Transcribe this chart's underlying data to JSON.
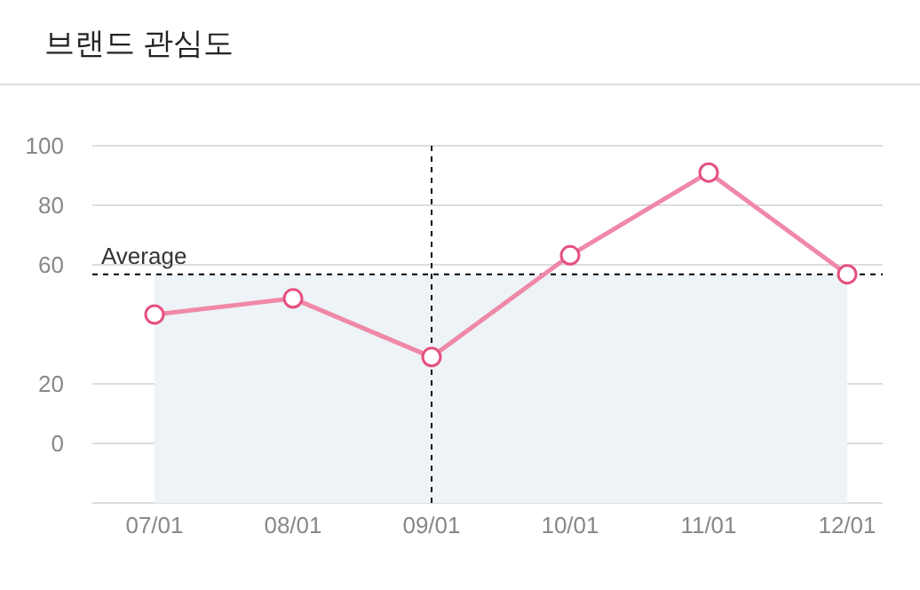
{
  "chart_data": {
    "type": "line",
    "title": "브랜드 관심도",
    "categories": [
      "07/01",
      "08/01",
      "09/01",
      "10/01",
      "11/01",
      "12/01"
    ],
    "series": [
      {
        "color": "#f088a8",
        "values": [
          43.3,
          48.7,
          29.0,
          63.2,
          91.0,
          56.8
        ]
      }
    ],
    "ylim": [
      -20,
      100
    ],
    "yticks": [
      {
        "value": -20,
        "label": null
      },
      0,
      20,
      60,
      80,
      100
    ],
    "grid": "y",
    "marker": "circle",
    "line_style": "solid",
    "ref_lines": [
      {
        "axis": "y",
        "value": 56.8,
        "label": "Average",
        "color": "#000000",
        "line_style": "dashed"
      },
      {
        "axis": "x",
        "value": "09/01",
        "color": "#000000",
        "line_style": "dashed"
      }
    ],
    "bands": [
      {
        "axis": "y",
        "from": -20,
        "to": 56.8,
        "color": "#edf3f7"
      }
    ]
  }
}
